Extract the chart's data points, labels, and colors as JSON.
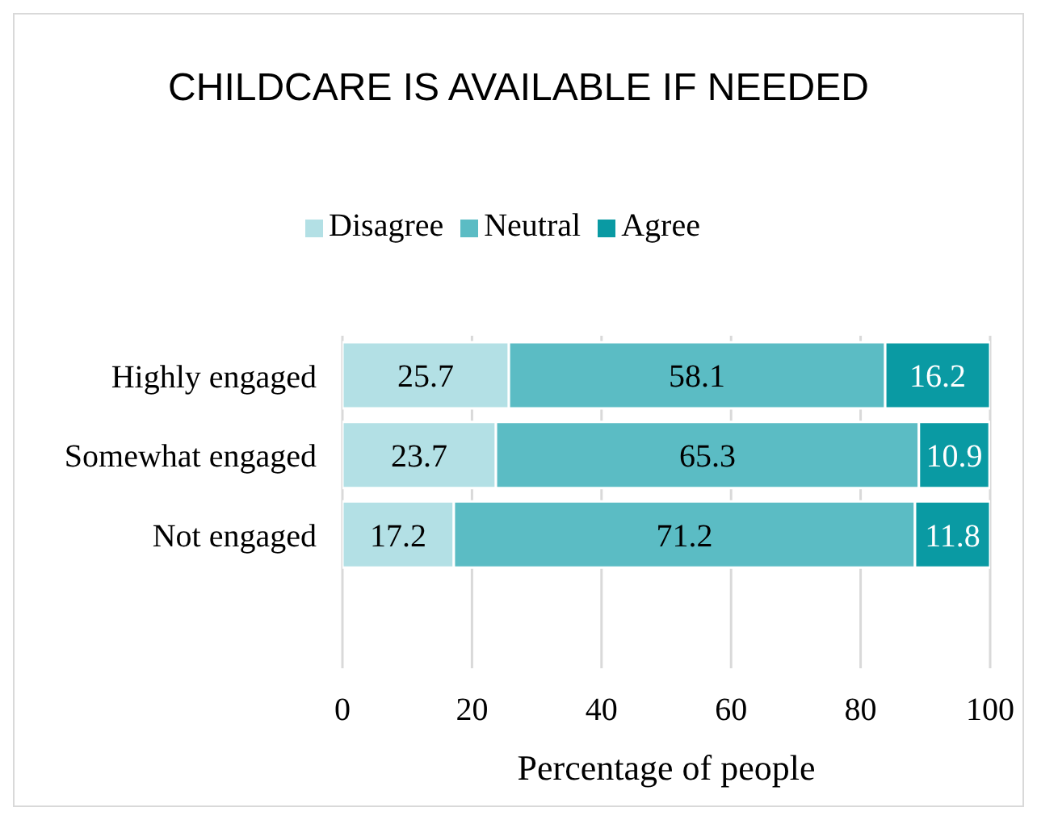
{
  "chart_data": {
    "type": "bar",
    "orientation": "horizontal",
    "stacked": true,
    "title": "CHILDCARE IS AVAILABLE IF NEEDED",
    "xlabel": "Percentage of people",
    "categories": [
      "Highly engaged",
      "Somewhat engaged",
      "Not engaged"
    ],
    "series": [
      {
        "name": "Disagree",
        "color": "#b3e0e5",
        "values": [
          25.7,
          23.7,
          17.2
        ]
      },
      {
        "name": "Neutral",
        "color": "#5bbcc4",
        "values": [
          58.1,
          65.3,
          71.2
        ]
      },
      {
        "name": "Agree",
        "color": "#0a9aa3",
        "values": [
          16.2,
          10.9,
          11.8
        ]
      }
    ],
    "xlim": [
      0,
      100
    ],
    "xticks": [
      0,
      20,
      40,
      60,
      80,
      100
    ],
    "grid": "x",
    "legend": "top",
    "data_labels": true
  }
}
